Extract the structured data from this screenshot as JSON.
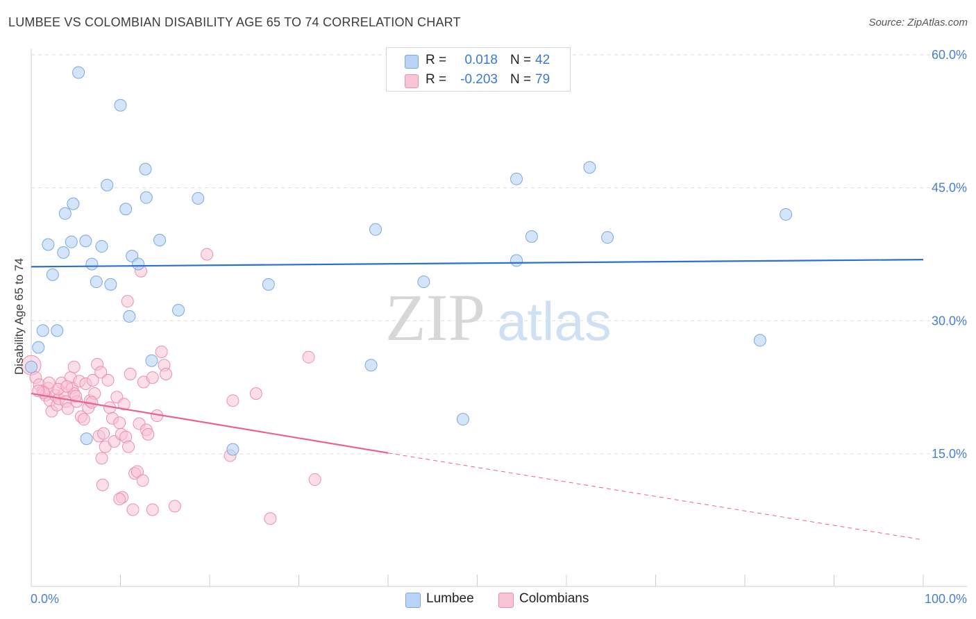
{
  "title": "LUMBEE VS COLOMBIAN DISABILITY AGE 65 TO 74 CORRELATION CHART",
  "source": "Source: ZipAtlas.com",
  "watermark": {
    "zip": "ZIP",
    "atlas": "atlas"
  },
  "colors": {
    "lumbee_fill": "#b8d3f5",
    "lumbee_stroke": "#7aa6e0",
    "lumbee_line": "#2a6fd1",
    "colombian_fill": "#f8c3d4",
    "colombian_stroke": "#ec8fae",
    "colombian_line": "#e8628f",
    "grid": "#dddddd",
    "axis_text": "#4a7fcf"
  },
  "legend": {
    "rows": [
      {
        "r_label": "R =",
        "r_value": "0.018",
        "n_label": "N =",
        "n_value": "42"
      },
      {
        "r_label": "R =",
        "r_value": "-0.203",
        "n_label": "N =",
        "n_value": "79"
      }
    ]
  },
  "bottom_legend": {
    "lumbee": "Lumbee",
    "colombians": "Colombians"
  },
  "chart_data": {
    "type": "scatter",
    "title": "LUMBEE VS COLOMBIAN DISABILITY AGE 65 TO 74 CORRELATION CHART",
    "xlabel": "",
    "ylabel": "Disability Age 65 to 74",
    "xlim": [
      0,
      100
    ],
    "ylim": [
      0,
      62
    ],
    "x_tick_labels": [
      "0.0%",
      "100.0%"
    ],
    "y_ticks": [
      15,
      30,
      45,
      60
    ],
    "y_tick_labels": [
      "15.0%",
      "30.0%",
      "45.0%",
      "60.0%"
    ],
    "legend_position": "top-center",
    "series": [
      {
        "name": "Lumbee",
        "R": 0.018,
        "N": 42,
        "trend": {
          "x": [
            0,
            100
          ],
          "y": [
            36.1,
            36.9
          ]
        },
        "points": [
          [
            5.3,
            58.0
          ],
          [
            10.0,
            54.3
          ],
          [
            12.8,
            47.1
          ],
          [
            8.5,
            45.3
          ],
          [
            10.6,
            42.6
          ],
          [
            12.9,
            43.9
          ],
          [
            18.7,
            43.8
          ],
          [
            4.7,
            43.2
          ],
          [
            3.8,
            42.1
          ],
          [
            1.9,
            38.6
          ],
          [
            4.5,
            38.9
          ],
          [
            6.1,
            39.0
          ],
          [
            7.9,
            38.4
          ],
          [
            14.4,
            39.1
          ],
          [
            3.6,
            37.7
          ],
          [
            11.3,
            37.3
          ],
          [
            6.8,
            36.4
          ],
          [
            12.0,
            36.4
          ],
          [
            2.4,
            35.2
          ],
          [
            7.3,
            34.4
          ],
          [
            8.9,
            34.1
          ],
          [
            26.6,
            34.1
          ],
          [
            11.0,
            30.5
          ],
          [
            16.5,
            31.2
          ],
          [
            1.3,
            28.9
          ],
          [
            2.9,
            28.9
          ],
          [
            0.8,
            27.0
          ],
          [
            13.5,
            25.5
          ],
          [
            0.0,
            24.8
          ],
          [
            6.2,
            16.7
          ],
          [
            22.6,
            15.5
          ],
          [
            38.6,
            40.3
          ],
          [
            44.0,
            34.4
          ],
          [
            38.1,
            25.0
          ],
          [
            48.4,
            18.9
          ],
          [
            54.4,
            46.0
          ],
          [
            56.1,
            39.5
          ],
          [
            54.4,
            36.8
          ],
          [
            62.6,
            47.3
          ],
          [
            64.6,
            39.4
          ],
          [
            81.7,
            27.8
          ],
          [
            84.6,
            42.0
          ]
        ]
      },
      {
        "name": "Colombians",
        "R": -0.203,
        "N": 79,
        "trend": {
          "x": [
            0,
            40
          ],
          "y": [
            21.8,
            15.1
          ]
        },
        "trend_dashed": {
          "x": [
            40,
            100
          ],
          "y": [
            15.1,
            5.3
          ]
        },
        "points": [
          [
            0.0,
            25.0
          ],
          [
            0.5,
            23.6
          ],
          [
            0.9,
            22.8
          ],
          [
            1.3,
            22.1
          ],
          [
            1.6,
            21.6
          ],
          [
            1.9,
            22.4
          ],
          [
            2.1,
            21.0
          ],
          [
            2.3,
            19.8
          ],
          [
            2.7,
            21.6
          ],
          [
            2.9,
            20.5
          ],
          [
            3.1,
            21.2
          ],
          [
            3.4,
            23.0
          ],
          [
            3.7,
            21.8
          ],
          [
            3.9,
            20.9
          ],
          [
            4.1,
            20.1
          ],
          [
            4.4,
            23.6
          ],
          [
            4.6,
            22.4
          ],
          [
            4.8,
            21.8
          ],
          [
            5.1,
            20.9
          ],
          [
            5.4,
            23.2
          ],
          [
            5.6,
            19.2
          ],
          [
            5.9,
            18.9
          ],
          [
            6.1,
            22.9
          ],
          [
            6.4,
            20.2
          ],
          [
            6.6,
            21.0
          ],
          [
            6.9,
            23.3
          ],
          [
            7.1,
            21.8
          ],
          [
            7.4,
            25.1
          ],
          [
            7.6,
            17.0
          ],
          [
            7.8,
            24.2
          ],
          [
            8.1,
            17.3
          ],
          [
            8.3,
            15.8
          ],
          [
            8.6,
            23.3
          ],
          [
            8.8,
            20.2
          ],
          [
            9.1,
            19.0
          ],
          [
            9.3,
            16.4
          ],
          [
            9.6,
            21.4
          ],
          [
            9.9,
            18.5
          ],
          [
            10.1,
            17.2
          ],
          [
            10.4,
            20.6
          ],
          [
            10.6,
            16.9
          ],
          [
            10.9,
            15.8
          ],
          [
            11.1,
            24.0
          ],
          [
            11.6,
            12.8
          ],
          [
            11.9,
            13.0
          ],
          [
            12.1,
            18.4
          ],
          [
            12.5,
            12.0
          ],
          [
            12.6,
            23.1
          ],
          [
            12.9,
            17.7
          ],
          [
            13.1,
            17.2
          ],
          [
            13.6,
            23.6
          ],
          [
            14.1,
            19.3
          ],
          [
            14.6,
            26.5
          ],
          [
            14.9,
            25.0
          ],
          [
            15.1,
            24.0
          ],
          [
            11.4,
            8.7
          ],
          [
            13.6,
            8.7
          ],
          [
            16.1,
            9.1
          ],
          [
            10.2,
            10.1
          ],
          [
            9.9,
            9.9
          ],
          [
            8.0,
            11.5
          ],
          [
            7.9,
            14.5
          ],
          [
            12.3,
            35.6
          ],
          [
            10.8,
            32.2
          ],
          [
            19.7,
            37.5
          ],
          [
            22.3,
            14.8
          ],
          [
            22.6,
            21.0
          ],
          [
            25.2,
            21.8
          ],
          [
            26.8,
            7.7
          ],
          [
            31.1,
            25.9
          ],
          [
            31.8,
            12.1
          ],
          [
            4.8,
            24.8
          ],
          [
            3.0,
            22.3
          ],
          [
            5.0,
            21.5
          ],
          [
            6.8,
            20.8
          ],
          [
            4.0,
            22.6
          ],
          [
            2.0,
            23.0
          ],
          [
            1.4,
            21.9
          ],
          [
            0.8,
            22.1
          ]
        ]
      }
    ]
  }
}
